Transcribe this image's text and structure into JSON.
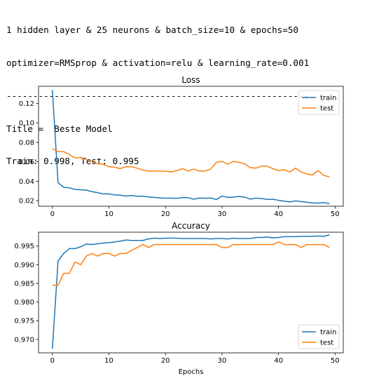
{
  "output": {
    "line1": "1 hidden layer & 25 neurons & batch_size=10 & epochs=50",
    "line2": "optimizer=RMSprop & activation=relu & learning_rate=0.001",
    "separator": "---------------------------------------------------------",
    "title_line": "Title =  Beste Model",
    "scores_line": "Train: 0.998, Test: 0.995"
  },
  "colors": {
    "train": "#1f77b4",
    "test": "#ff7f0e"
  },
  "chart_data": [
    {
      "type": "line",
      "title": "Loss",
      "xlabel": "",
      "ylabel": "",
      "xlim": [
        -2.45,
        51.45
      ],
      "ylim": [
        0.0143,
        0.1377
      ],
      "xticks": [
        0,
        10,
        20,
        30,
        40,
        50
      ],
      "yticks": [
        0.02,
        0.04,
        0.06,
        0.08,
        0.1,
        0.12
      ],
      "ytick_labels": [
        "0.02",
        "0.04",
        "0.06",
        "0.08",
        "0.10",
        "0.12"
      ],
      "grid": false,
      "legend": "upper right",
      "x": [
        0,
        1,
        2,
        3,
        4,
        5,
        6,
        7,
        8,
        9,
        10,
        11,
        12,
        13,
        14,
        15,
        16,
        17,
        18,
        19,
        20,
        21,
        22,
        23,
        24,
        25,
        26,
        27,
        28,
        29,
        30,
        31,
        32,
        33,
        34,
        35,
        36,
        37,
        38,
        39,
        40,
        41,
        42,
        43,
        44,
        45,
        46,
        47,
        48,
        49
      ],
      "series": [
        {
          "name": "train",
          "values": [
            0.134,
            0.0385,
            0.0338,
            0.0332,
            0.0316,
            0.0312,
            0.0309,
            0.0293,
            0.0283,
            0.0269,
            0.027,
            0.0259,
            0.0257,
            0.0248,
            0.0254,
            0.0246,
            0.0246,
            0.0239,
            0.0234,
            0.0229,
            0.0226,
            0.0226,
            0.0224,
            0.0232,
            0.0231,
            0.0215,
            0.0228,
            0.0225,
            0.0228,
            0.0212,
            0.0248,
            0.0234,
            0.0237,
            0.0244,
            0.0237,
            0.0216,
            0.0227,
            0.0222,
            0.0213,
            0.0215,
            0.0204,
            0.0195,
            0.0187,
            0.0198,
            0.0191,
            0.0184,
            0.0177,
            0.0175,
            0.0181,
            0.0169
          ]
        },
        {
          "name": "test",
          "values": [
            0.0735,
            0.0705,
            0.0705,
            0.0675,
            0.064,
            0.0645,
            0.0625,
            0.06,
            0.058,
            0.0575,
            0.055,
            0.0545,
            0.053,
            0.055,
            0.055,
            0.0535,
            0.0515,
            0.0505,
            0.0505,
            0.0505,
            0.0505,
            0.0495,
            0.051,
            0.053,
            0.0505,
            0.0525,
            0.0505,
            0.0505,
            0.0525,
            0.0595,
            0.0605,
            0.0575,
            0.0605,
            0.0595,
            0.058,
            0.054,
            0.0535,
            0.0555,
            0.0555,
            0.053,
            0.051,
            0.052,
            0.0495,
            0.0535,
            0.0495,
            0.0475,
            0.0465,
            0.051,
            0.046,
            0.0445
          ]
        }
      ]
    },
    {
      "type": "line",
      "title": "Accuracy",
      "xlabel": "Epochs",
      "ylabel": "",
      "xlim": [
        -2.45,
        51.45
      ],
      "ylim": [
        0.9664,
        0.9987
      ],
      "xticks": [
        0,
        10,
        20,
        30,
        40,
        50
      ],
      "yticks": [
        0.97,
        0.975,
        0.98,
        0.985,
        0.99,
        0.995
      ],
      "ytick_labels": [
        "0.970",
        "0.975",
        "0.980",
        "0.985",
        "0.990",
        "0.995"
      ],
      "grid": false,
      "legend": "lower right",
      "x": [
        0,
        1,
        2,
        3,
        4,
        5,
        6,
        7,
        8,
        9,
        10,
        11,
        12,
        13,
        14,
        15,
        16,
        17,
        18,
        19,
        20,
        21,
        22,
        23,
        24,
        25,
        26,
        27,
        28,
        29,
        30,
        31,
        32,
        33,
        34,
        35,
        36,
        37,
        38,
        39,
        40,
        41,
        42,
        43,
        44,
        45,
        46,
        47,
        48,
        49
      ],
      "series": [
        {
          "name": "train",
          "values": [
            0.9675,
            0.991,
            0.993,
            0.9943,
            0.9943,
            0.9948,
            0.9955,
            0.9954,
            0.9956,
            0.9958,
            0.9959,
            0.9961,
            0.9963,
            0.9966,
            0.9965,
            0.9965,
            0.9965,
            0.9969,
            0.9971,
            0.997,
            0.9971,
            0.9971,
            0.9971,
            0.997,
            0.997,
            0.997,
            0.997,
            0.997,
            0.9969,
            0.997,
            0.997,
            0.9969,
            0.9971,
            0.997,
            0.997,
            0.997,
            0.9973,
            0.9973,
            0.9974,
            0.9972,
            0.9973,
            0.9975,
            0.9975,
            0.9975,
            0.9976,
            0.9976,
            0.9976,
            0.9977,
            0.9976,
            0.998
          ]
        },
        {
          "name": "test",
          "values": [
            0.9845,
            0.9845,
            0.9877,
            0.9877,
            0.9907,
            0.99,
            0.9923,
            0.993,
            0.9923,
            0.993,
            0.993,
            0.9923,
            0.993,
            0.993,
            0.9938,
            0.9946,
            0.9954,
            0.9946,
            0.9954,
            0.9954,
            0.9954,
            0.9954,
            0.9954,
            0.9954,
            0.9954,
            0.9954,
            0.9954,
            0.9954,
            0.9954,
            0.9954,
            0.9946,
            0.9946,
            0.9954,
            0.9954,
            0.9954,
            0.9954,
            0.9954,
            0.9954,
            0.9954,
            0.9954,
            0.9961,
            0.9954,
            0.9954,
            0.9954,
            0.9946,
            0.9954,
            0.9954,
            0.9954,
            0.9954,
            0.9946
          ]
        }
      ]
    }
  ]
}
